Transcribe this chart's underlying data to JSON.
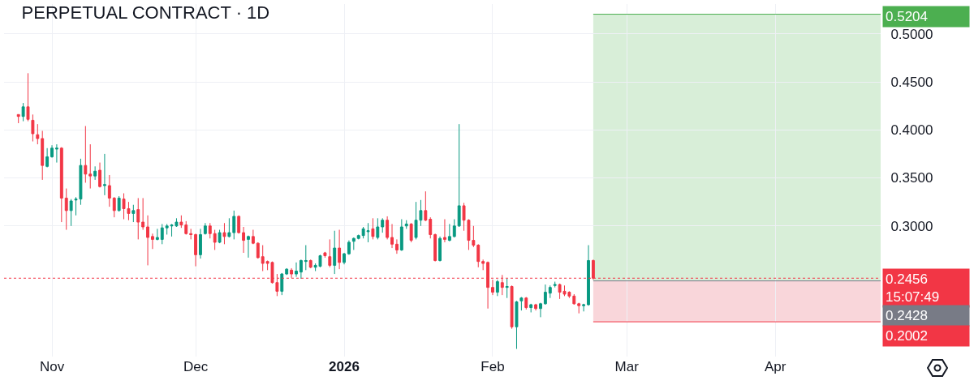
{
  "chart_data": {
    "type": "candlestick",
    "title": "PERPETUAL CONTRACT · 1D",
    "colors": [
      "#f23645",
      "#089981",
      "#f23645",
      "#f23645",
      "#f23645",
      "#f23645",
      "#089981",
      "#089981",
      "#089981",
      "#f23645",
      "#f23645",
      "#089981",
      "#089981",
      "#089981",
      "#f23645",
      "#f23645",
      "#089981",
      "#f23645",
      "#089981",
      "#f23645",
      "#f23645",
      "#089981",
      "#f23645",
      "#f23645",
      "#089981",
      "#f23645",
      "#f23645",
      "#f23645",
      "#f23645",
      "#089981",
      "#089981",
      "#089981",
      "#089981",
      "#089981",
      "#f23645",
      "#f23645",
      "#f23645",
      "#f23645",
      "#089981",
      "#089981",
      "#f23645",
      "#f23645",
      "#089981",
      "#f23645",
      "#089981",
      "#089981",
      "#f23645",
      "#f23645",
      "#089981",
      "#f23645",
      "#f23645",
      "#f23645",
      "#f23645",
      "#f23645",
      "#f23645",
      "#089981",
      "#089981",
      "#f23645",
      "#089981",
      "#089981",
      "#089981",
      "#f23645",
      "#089981",
      "#089981",
      "#f23645",
      "#f23645",
      "#089981",
      "#f23645",
      "#089981",
      "#089981",
      "#089981",
      "#089981",
      "#089981",
      "#089981",
      "#f23645",
      "#089981",
      "#089981",
      "#f23645",
      "#f23645",
      "#f23645",
      "#089981",
      "#089981",
      "#f23645",
      "#089981",
      "#089981",
      "#f23645",
      "#f23645",
      "#f23645",
      "#089981",
      "#f23645",
      "#089981",
      "#089981",
      "#089981",
      "#f23645",
      "#f23645",
      "#f23645",
      "#f23645",
      "#f23645",
      "#f23645",
      "#f23645",
      "#089981",
      "#f23645",
      "#089981",
      "#f23645",
      "#089981",
      "#089981",
      "#f23645",
      "#089981",
      "#f23645",
      "#089981",
      "#089981",
      "#089981",
      "#089981",
      "#f23645",
      "#f23645",
      "#f23645",
      "#f23645",
      "#f23645",
      "#089981",
      "#089981",
      "#f23645"
    ],
    "x": [
      "2025-10-25",
      "2025-10-26",
      "2025-10-27",
      "2025-10-28",
      "2025-10-29",
      "2025-10-30",
      "2025-10-31",
      "2025-11-01",
      "2025-11-02",
      "2025-11-03",
      "2025-11-04",
      "2025-11-05",
      "2025-11-06",
      "2025-11-07",
      "2025-11-08",
      "2025-11-09",
      "2025-11-10",
      "2025-11-11",
      "2025-11-12",
      "2025-11-13",
      "2025-11-14",
      "2025-11-15",
      "2025-11-16",
      "2025-11-17",
      "2025-11-18",
      "2025-11-19",
      "2025-11-20",
      "2025-11-21",
      "2025-11-22",
      "2025-11-23",
      "2025-11-24",
      "2025-11-25",
      "2025-11-26",
      "2025-11-27",
      "2025-11-28",
      "2025-11-29",
      "2025-11-30",
      "2025-12-01",
      "2025-12-02",
      "2025-12-03",
      "2025-12-04",
      "2025-12-05",
      "2025-12-06",
      "2025-12-07",
      "2025-12-08",
      "2025-12-09",
      "2025-12-10",
      "2025-12-11",
      "2025-12-12",
      "2025-12-13",
      "2025-12-14",
      "2025-12-15",
      "2025-12-16",
      "2025-12-17",
      "2025-12-18",
      "2025-12-19",
      "2025-12-20",
      "2025-12-21",
      "2025-12-22",
      "2025-12-23",
      "2025-12-24",
      "2025-12-25",
      "2025-12-26",
      "2025-12-27",
      "2025-12-28",
      "2025-12-29",
      "2025-12-30",
      "2025-12-31",
      "2026-01-01",
      "2026-01-02",
      "2026-01-03",
      "2026-01-04",
      "2026-01-05",
      "2026-01-06",
      "2026-01-07",
      "2026-01-08",
      "2026-01-09",
      "2026-01-10",
      "2026-01-11",
      "2026-01-12",
      "2026-01-13",
      "2026-01-14",
      "2026-01-15",
      "2026-01-16",
      "2026-01-17",
      "2026-01-18",
      "2026-01-19",
      "2026-01-20",
      "2026-01-21",
      "2026-01-22",
      "2026-01-23",
      "2026-01-24",
      "2026-01-25",
      "2026-01-26",
      "2026-01-27",
      "2026-01-28",
      "2026-01-29",
      "2026-01-30",
      "2026-01-31",
      "2026-02-01",
      "2026-02-02",
      "2026-02-03",
      "2026-02-04",
      "2026-02-05",
      "2026-02-06",
      "2026-02-07",
      "2026-02-08",
      "2026-02-09",
      "2026-02-10",
      "2026-02-11",
      "2026-02-12",
      "2026-02-13",
      "2026-02-14",
      "2026-02-15",
      "2026-02-16",
      "2026-02-17",
      "2026-02-18",
      "2026-02-19",
      "2026-02-20",
      "2026-02-21",
      "2026-02-22"
    ],
    "ohlc": [
      [
        0.416,
        0.416,
        0.407,
        0.414
      ],
      [
        0.414,
        0.428,
        0.409,
        0.424
      ],
      [
        0.424,
        0.459,
        0.409,
        0.411
      ],
      [
        0.41,
        0.416,
        0.388,
        0.396
      ],
      [
        0.395,
        0.406,
        0.385,
        0.391
      ],
      [
        0.391,
        0.399,
        0.348,
        0.363
      ],
      [
        0.362,
        0.381,
        0.361,
        0.372
      ],
      [
        0.372,
        0.384,
        0.371,
        0.381
      ],
      [
        0.38,
        0.385,
        0.366,
        0.381
      ],
      [
        0.381,
        0.382,
        0.304,
        0.329
      ],
      [
        0.329,
        0.339,
        0.296,
        0.316
      ],
      [
        0.316,
        0.328,
        0.3,
        0.326
      ],
      [
        0.327,
        0.33,
        0.311,
        0.328
      ],
      [
        0.328,
        0.37,
        0.322,
        0.363
      ],
      [
        0.363,
        0.404,
        0.345,
        0.354
      ],
      [
        0.354,
        0.385,
        0.339,
        0.352
      ],
      [
        0.352,
        0.362,
        0.348,
        0.357
      ],
      [
        0.358,
        0.366,
        0.34,
        0.341
      ],
      [
        0.342,
        0.375,
        0.332,
        0.343
      ],
      [
        0.342,
        0.353,
        0.32,
        0.329
      ],
      [
        0.329,
        0.33,
        0.309,
        0.316
      ],
      [
        0.316,
        0.331,
        0.315,
        0.329
      ],
      [
        0.328,
        0.334,
        0.307,
        0.318
      ],
      [
        0.318,
        0.325,
        0.306,
        0.313
      ],
      [
        0.313,
        0.322,
        0.304,
        0.316
      ],
      [
        0.317,
        0.329,
        0.286,
        0.304
      ],
      [
        0.304,
        0.329,
        0.296,
        0.299
      ],
      [
        0.299,
        0.311,
        0.259,
        0.288
      ],
      [
        0.289,
        0.292,
        0.276,
        0.286
      ],
      [
        0.286,
        0.297,
        0.285,
        0.288
      ],
      [
        0.286,
        0.302,
        0.281,
        0.298
      ],
      [
        0.298,
        0.302,
        0.291,
        0.3
      ],
      [
        0.3,
        0.302,
        0.289,
        0.301
      ],
      [
        0.3,
        0.308,
        0.299,
        0.304
      ],
      [
        0.304,
        0.311,
        0.298,
        0.301
      ],
      [
        0.301,
        0.305,
        0.291,
        0.292
      ],
      [
        0.292,
        0.297,
        0.286,
        0.291
      ],
      [
        0.291,
        0.292,
        0.258,
        0.27
      ],
      [
        0.27,
        0.297,
        0.266,
        0.291
      ],
      [
        0.292,
        0.303,
        0.291,
        0.3
      ],
      [
        0.3,
        0.303,
        0.287,
        0.292
      ],
      [
        0.292,
        0.296,
        0.275,
        0.283
      ],
      [
        0.283,
        0.296,
        0.282,
        0.293
      ],
      [
        0.293,
        0.303,
        0.281,
        0.289
      ],
      [
        0.289,
        0.308,
        0.288,
        0.293
      ],
      [
        0.293,
        0.316,
        0.286,
        0.31
      ],
      [
        0.31,
        0.311,
        0.292,
        0.293
      ],
      [
        0.293,
        0.299,
        0.272,
        0.285
      ],
      [
        0.286,
        0.29,
        0.267,
        0.289
      ],
      [
        0.289,
        0.296,
        0.281,
        0.282
      ],
      [
        0.282,
        0.283,
        0.266,
        0.267
      ],
      [
        0.268,
        0.28,
        0.253,
        0.261
      ],
      [
        0.263,
        0.264,
        0.254,
        0.261
      ],
      [
        0.262,
        0.263,
        0.24,
        0.241
      ],
      [
        0.241,
        0.25,
        0.227,
        0.232
      ],
      [
        0.232,
        0.251,
        0.228,
        0.25
      ],
      [
        0.25,
        0.256,
        0.249,
        0.255
      ],
      [
        0.254,
        0.256,
        0.246,
        0.25
      ],
      [
        0.25,
        0.262,
        0.247,
        0.253
      ],
      [
        0.252,
        0.265,
        0.245,
        0.264
      ],
      [
        0.263,
        0.28,
        0.254,
        0.264
      ],
      [
        0.264,
        0.265,
        0.256,
        0.257
      ],
      [
        0.257,
        0.261,
        0.253,
        0.259
      ],
      [
        0.258,
        0.27,
        0.257,
        0.269
      ],
      [
        0.272,
        0.273,
        0.267,
        0.269
      ],
      [
        0.268,
        0.286,
        0.257,
        0.259
      ],
      [
        0.259,
        0.295,
        0.25,
        0.277
      ],
      [
        0.277,
        0.296,
        0.255,
        0.262
      ],
      [
        0.262,
        0.272,
        0.26,
        0.271
      ],
      [
        0.271,
        0.285,
        0.27,
        0.283
      ],
      [
        0.284,
        0.288,
        0.275,
        0.287
      ],
      [
        0.287,
        0.291,
        0.286,
        0.29
      ],
      [
        0.29,
        0.299,
        0.287,
        0.297
      ],
      [
        0.294,
        0.303,
        0.283,
        0.295
      ],
      [
        0.297,
        0.308,
        0.286,
        0.289
      ],
      [
        0.288,
        0.308,
        0.286,
        0.299
      ],
      [
        0.299,
        0.308,
        0.293,
        0.306
      ],
      [
        0.306,
        0.31,
        0.286,
        0.288
      ],
      [
        0.288,
        0.302,
        0.277,
        0.281
      ],
      [
        0.281,
        0.286,
        0.271,
        0.275
      ],
      [
        0.275,
        0.307,
        0.274,
        0.299
      ],
      [
        0.3,
        0.306,
        0.297,
        0.302
      ],
      [
        0.302,
        0.303,
        0.283,
        0.285
      ],
      [
        0.288,
        0.325,
        0.286,
        0.306
      ],
      [
        0.306,
        0.327,
        0.3,
        0.316
      ],
      [
        0.316,
        0.336,
        0.305,
        0.306
      ],
      [
        0.307,
        0.309,
        0.287,
        0.291
      ],
      [
        0.291,
        0.292,
        0.263,
        0.264
      ],
      [
        0.264,
        0.289,
        0.263,
        0.287
      ],
      [
        0.288,
        0.307,
        0.283,
        0.286
      ],
      [
        0.285,
        0.302,
        0.284,
        0.289
      ],
      [
        0.289,
        0.307,
        0.288,
        0.3
      ],
      [
        0.3,
        0.406,
        0.299,
        0.321
      ],
      [
        0.321,
        0.324,
        0.295,
        0.306
      ],
      [
        0.306,
        0.307,
        0.275,
        0.285
      ],
      [
        0.285,
        0.3,
        0.278,
        0.28
      ],
      [
        0.28,
        0.281,
        0.257,
        0.263
      ],
      [
        0.263,
        0.265,
        0.254,
        0.261
      ],
      [
        0.262,
        0.263,
        0.214,
        0.236
      ],
      [
        0.236,
        0.244,
        0.228,
        0.231
      ],
      [
        0.231,
        0.244,
        0.227,
        0.242
      ],
      [
        0.241,
        0.249,
        0.228,
        0.236
      ],
      [
        0.236,
        0.245,
        0.225,
        0.237
      ],
      [
        0.237,
        0.238,
        0.193,
        0.195
      ],
      [
        0.195,
        0.222,
        0.172,
        0.221
      ],
      [
        0.222,
        0.226,
        0.212,
        0.225
      ],
      [
        0.225,
        0.226,
        0.213,
        0.215
      ],
      [
        0.215,
        0.219,
        0.21,
        0.218
      ],
      [
        0.218,
        0.219,
        0.212,
        0.214
      ],
      [
        0.214,
        0.22,
        0.205,
        0.219
      ],
      [
        0.219,
        0.239,
        0.218,
        0.231
      ],
      [
        0.23,
        0.238,
        0.225,
        0.236
      ],
      [
        0.238,
        0.242,
        0.236,
        0.239
      ],
      [
        0.239,
        0.24,
        0.224,
        0.231
      ],
      [
        0.232,
        0.238,
        0.227,
        0.229
      ],
      [
        0.231,
        0.232,
        0.225,
        0.227
      ],
      [
        0.227,
        0.229,
        0.218,
        0.219
      ],
      [
        0.219,
        0.22,
        0.209,
        0.217
      ],
      [
        0.217,
        0.219,
        0.211,
        0.218
      ],
      [
        0.218,
        0.28,
        0.217,
        0.264
      ],
      [
        0.264,
        0.265,
        0.244,
        0.2456
      ]
    ],
    "xlim": [
      "2025-10-22",
      "2026-04-23"
    ],
    "xticks": [
      {
        "value": "2025-11-01",
        "label": "Nov"
      },
      {
        "value": "2025-12-01",
        "label": "Dec"
      },
      {
        "value": "2026-01-01",
        "label": "2026"
      },
      {
        "value": "2026-02-01",
        "label": "Feb"
      },
      {
        "value": "2026-03-01",
        "label": "Mar"
      },
      {
        "value": "2026-04-01",
        "label": "Apr"
      }
    ],
    "ylim": [
      0.164,
      0.531
    ],
    "yticks": [
      {
        "value": 0.3,
        "label": "0.3000"
      },
      {
        "value": 0.35,
        "label": "0.3500"
      },
      {
        "value": 0.4,
        "label": "0.4000"
      },
      {
        "value": 0.45,
        "label": "0.4500"
      },
      {
        "value": 0.5,
        "label": "0.5000"
      }
    ],
    "grid": true,
    "bands": [
      {
        "axis": "y",
        "from": 0.2428,
        "to": 0.5204,
        "color": "#d8eed8"
      },
      {
        "axis": "y",
        "from": 0.2002,
        "to": 0.2428,
        "color": "#f9d6da"
      }
    ],
    "ref_lines": [
      {
        "axis": "y",
        "value": 0.5204,
        "label": "0.5204",
        "color": "#4caf50"
      },
      {
        "axis": "y",
        "value": 0.2456,
        "label": "0.2456\n15:07:49",
        "color": "#f23645",
        "line_style": "dotted"
      },
      {
        "axis": "y",
        "value": 0.2428,
        "label": "0.2428",
        "color": "#787b86"
      },
      {
        "axis": "y",
        "value": 0.2002,
        "label": "0.2002",
        "color": "#f23645"
      }
    ]
  }
}
